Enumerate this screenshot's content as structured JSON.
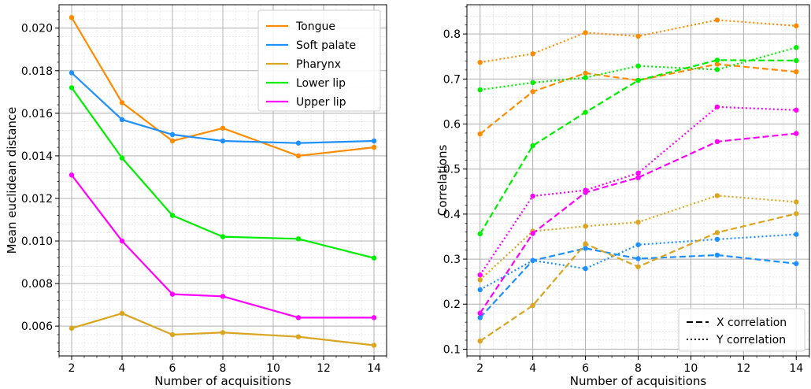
{
  "colors": {
    "Tongue": "#ff8c00",
    "Soft palate": "#1e90ff",
    "Pharynx": "#daa520",
    "Lower lip": "#00ee00",
    "Upper lip": "#ff00ff"
  },
  "chart_data": [
    {
      "type": "line",
      "xlabel": "Number of acquisitions",
      "ylabel": "Mean euclidean distance",
      "x": [
        2,
        4,
        6,
        8,
        11,
        14
      ],
      "xticks": [
        2,
        4,
        6,
        8,
        10,
        12,
        14
      ],
      "xlim": [
        1.5,
        14.5
      ],
      "ylim": [
        0.0046,
        0.0211
      ],
      "yticks": [
        "0.006",
        "0.008",
        "0.010",
        "0.012",
        "0.014",
        "0.016",
        "0.018",
        "0.020"
      ],
      "grid": true,
      "legend_position": "top-right",
      "series": [
        {
          "name": "Tongue",
          "values": [
            0.0205,
            0.0165,
            0.0147,
            0.0153,
            0.014,
            0.0144
          ]
        },
        {
          "name": "Soft palate",
          "values": [
            0.0179,
            0.0157,
            0.015,
            0.0147,
            0.0146,
            0.0147
          ]
        },
        {
          "name": "Pharynx",
          "values": [
            0.0059,
            0.0066,
            0.0056,
            0.0057,
            0.0055,
            0.0051
          ]
        },
        {
          "name": "Lower lip",
          "values": [
            0.0172,
            0.0139,
            0.0112,
            0.0102,
            0.0101,
            0.0092
          ]
        },
        {
          "name": "Upper lip",
          "values": [
            0.0131,
            0.01,
            0.0075,
            0.0074,
            0.0064,
            0.0064
          ]
        }
      ]
    },
    {
      "type": "line",
      "xlabel": "Number of acquisitions",
      "ylabel": "Correlations",
      "x": [
        2,
        4,
        6,
        8,
        11,
        14
      ],
      "xticks": [
        2,
        4,
        6,
        8,
        10,
        12,
        14
      ],
      "xlim": [
        1.5,
        14.5
      ],
      "ylim": [
        0.085,
        0.865
      ],
      "yticks": [
        "0.1",
        "0.2",
        "0.3",
        "0.4",
        "0.5",
        "0.6",
        "0.7",
        "0.8"
      ],
      "grid": true,
      "legend_position": "bottom-right",
      "legend": [
        {
          "label": "X correlation",
          "style": "dashed"
        },
        {
          "label": "Y correlation",
          "style": "dotted"
        }
      ],
      "series": [
        {
          "structure": "Tongue",
          "style": "dashed",
          "values": [
            0.578,
            0.672,
            0.713,
            0.697,
            0.733,
            0.716
          ]
        },
        {
          "structure": "Tongue",
          "style": "dotted",
          "values": [
            0.737,
            0.756,
            0.803,
            0.795,
            0.831,
            0.818
          ]
        },
        {
          "structure": "Soft palate",
          "style": "dashed",
          "values": [
            0.17,
            0.297,
            0.324,
            0.301,
            0.309,
            0.29
          ]
        },
        {
          "structure": "Soft palate",
          "style": "dotted",
          "values": [
            0.232,
            0.297,
            0.279,
            0.332,
            0.344,
            0.355
          ]
        },
        {
          "structure": "Pharynx",
          "style": "dashed",
          "values": [
            0.118,
            0.197,
            0.334,
            0.283,
            0.359,
            0.401
          ]
        },
        {
          "structure": "Pharynx",
          "style": "dotted",
          "values": [
            0.254,
            0.362,
            0.373,
            0.382,
            0.441,
            0.427
          ]
        },
        {
          "structure": "Lower lip",
          "style": "dashed",
          "values": [
            0.356,
            0.552,
            0.626,
            0.697,
            0.742,
            0.741
          ]
        },
        {
          "structure": "Lower lip",
          "style": "dotted",
          "values": [
            0.676,
            0.692,
            0.703,
            0.729,
            0.721,
            0.77
          ]
        },
        {
          "structure": "Upper lip",
          "style": "dashed",
          "values": [
            0.18,
            0.357,
            0.448,
            0.481,
            0.561,
            0.579
          ]
        },
        {
          "structure": "Upper lip",
          "style": "dotted",
          "values": [
            0.265,
            0.44,
            0.453,
            0.491,
            0.638,
            0.631
          ]
        }
      ]
    }
  ]
}
